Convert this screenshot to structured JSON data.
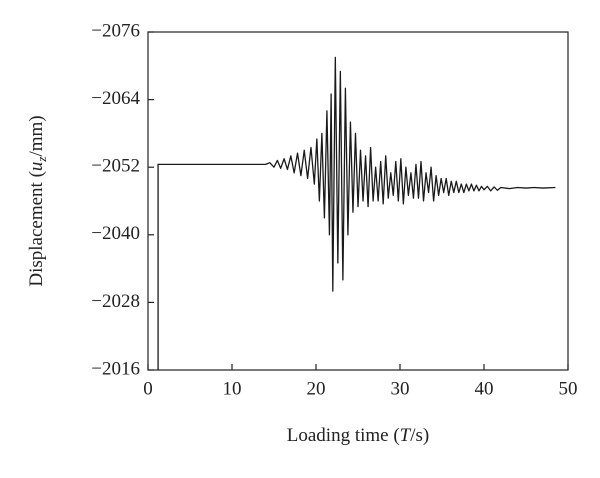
{
  "chart_data": {
    "type": "line",
    "x_label": [
      "Loading time (",
      "T",
      "/s)"
    ],
    "y_label": [
      "Displacement (",
      "u",
      "z",
      "/mm)"
    ],
    "xlim": [
      0,
      50
    ],
    "xticks": [
      0,
      10,
      20,
      30,
      40,
      50
    ],
    "ylim": [
      -2016,
      -2076
    ],
    "yticks": [
      {
        "value": -2076,
        "label": "−2076"
      },
      {
        "value": -2064,
        "label": "−2064"
      },
      {
        "value": -2052,
        "label": "−2052"
      },
      {
        "value": -2040,
        "label": "−2040"
      },
      {
        "value": -2028,
        "label": "−2028"
      },
      {
        "value": -2016,
        "label": "−2016"
      }
    ],
    "series": [
      {
        "color": "#1a1a1a",
        "x": [
          1.2,
          1.2,
          5,
          10,
          14,
          14.5,
          15,
          15.4,
          15.8,
          16.2,
          16.6,
          17,
          17.4,
          17.8,
          18.2,
          18.6,
          19,
          19.4,
          19.8,
          20.1,
          20.4,
          20.7,
          21,
          21.3,
          21.6,
          21.8,
          22.0,
          22.3,
          22.6,
          22.9,
          23.2,
          23.5,
          23.8,
          24.1,
          24.4,
          24.7,
          25,
          25.3,
          25.6,
          25.9,
          26.2,
          26.5,
          26.8,
          27.1,
          27.4,
          27.7,
          28,
          28.3,
          28.6,
          28.9,
          29.2,
          29.5,
          29.8,
          30.1,
          30.4,
          30.7,
          31,
          31.3,
          31.6,
          31.9,
          32.2,
          32.5,
          32.8,
          33.1,
          33.4,
          33.7,
          34,
          34.3,
          34.6,
          34.9,
          35.2,
          35.5,
          35.8,
          36.1,
          36.4,
          36.7,
          37,
          37.3,
          37.6,
          37.9,
          38.2,
          38.5,
          38.8,
          39.1,
          39.4,
          39.7,
          40,
          40.4,
          40.8,
          41.2,
          41.6,
          42,
          43,
          44,
          45,
          46,
          47,
          48.5
        ],
        "values": [
          -2016,
          -2052.5,
          -2052.5,
          -2052.5,
          -2052.5,
          -2052.8,
          -2052,
          -2053.2,
          -2051.8,
          -2053.5,
          -2051.6,
          -2054,
          -2051,
          -2054.5,
          -2050.5,
          -2055,
          -2050,
          -2055.5,
          -2049,
          -2057,
          -2046,
          -2058,
          -2043,
          -2062,
          -2040,
          -2065,
          -2030,
          -2071.5,
          -2035,
          -2069,
          -2032,
          -2066,
          -2040,
          -2060,
          -2044,
          -2058,
          -2045,
          -2055,
          -2046,
          -2054,
          -2045,
          -2055.5,
          -2046,
          -2052,
          -2046,
          -2053,
          -2045.5,
          -2054,
          -2046.5,
          -2051,
          -2047,
          -2053,
          -2046,
          -2053.5,
          -2045.5,
          -2052,
          -2047,
          -2051,
          -2046.5,
          -2052.5,
          -2046.5,
          -2053,
          -2046,
          -2051,
          -2047.5,
          -2052,
          -2046,
          -2050.5,
          -2047,
          -2050,
          -2047.5,
          -2050,
          -2047,
          -2049.5,
          -2047.5,
          -2049.5,
          -2047.5,
          -2049,
          -2047.5,
          -2049,
          -2047.8,
          -2049,
          -2047.8,
          -2048.8,
          -2047.8,
          -2048.6,
          -2048,
          -2048.6,
          -2047.8,
          -2048.5,
          -2047.9,
          -2048.4,
          -2048.2,
          -2048.4,
          -2048.3,
          -2048.4,
          -2048.3,
          -2048.4
        ]
      }
    ]
  }
}
